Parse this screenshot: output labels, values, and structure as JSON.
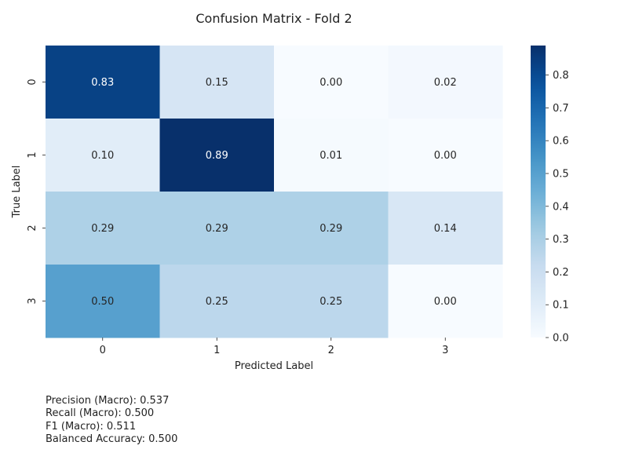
{
  "chart_data": {
    "type": "heatmap",
    "title": "Confusion Matrix - Fold 2",
    "xlabel": "Predicted Label",
    "ylabel": "True Label",
    "x_categories": [
      "0",
      "1",
      "2",
      "3"
    ],
    "y_categories": [
      "0",
      "1",
      "2",
      "3"
    ],
    "values": [
      [
        0.83,
        0.15,
        0.0,
        0.02
      ],
      [
        0.1,
        0.89,
        0.01,
        0.0
      ],
      [
        0.29,
        0.29,
        0.29,
        0.14
      ],
      [
        0.5,
        0.25,
        0.25,
        0.0
      ]
    ],
    "colormap": "Blues",
    "color_range": [
      0.0,
      0.89
    ],
    "colorbar_ticks": [
      "0.0",
      "0.1",
      "0.2",
      "0.3",
      "0.4",
      "0.5",
      "0.6",
      "0.7",
      "0.8"
    ],
    "grid": false,
    "legend": "colorbar-right"
  },
  "metrics": {
    "precision": "Precision (Macro): 0.537",
    "recall": "Recall (Macro): 0.500",
    "f1": "F1 (Macro): 0.511",
    "balanced_accuracy": "Balanced Accuracy: 0.500"
  }
}
